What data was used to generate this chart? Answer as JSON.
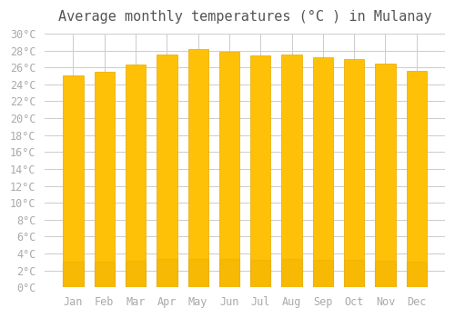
{
  "title": "Average monthly temperatures (°C ) in Mulanay",
  "months": [
    "Jan",
    "Feb",
    "Mar",
    "Apr",
    "May",
    "Jun",
    "Jul",
    "Aug",
    "Sep",
    "Oct",
    "Nov",
    "Dec"
  ],
  "values": [
    25.1,
    25.5,
    26.3,
    27.5,
    28.2,
    27.8,
    27.4,
    27.5,
    27.2,
    27.0,
    26.5,
    25.6
  ],
  "bar_color_top": "#FFC107",
  "bar_color_bottom": "#FFB300",
  "bar_edge_color": "#E6A800",
  "background_color": "#FFFFFF",
  "plot_background_color": "#FFFFFF",
  "grid_color": "#CCCCCC",
  "tick_label_color": "#AAAAAA",
  "title_color": "#555555",
  "ylim": [
    0,
    30
  ],
  "ytick_step": 2,
  "title_fontsize": 11,
  "tick_fontsize": 8.5
}
